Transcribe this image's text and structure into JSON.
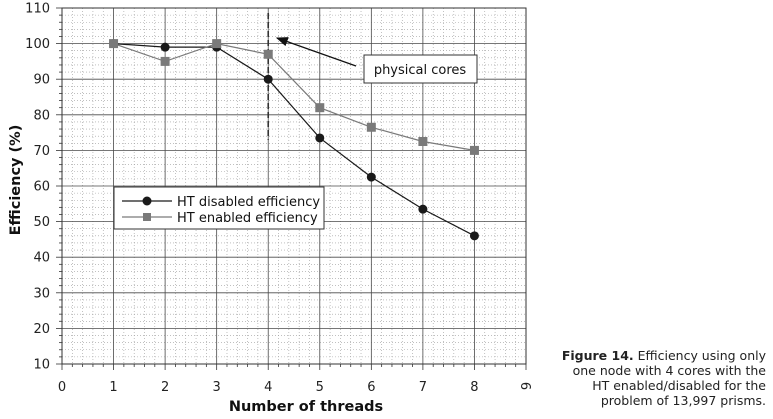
{
  "chart_data": {
    "type": "line",
    "title": "",
    "xlabel": "Number of threads",
    "ylabel": "Efficiency (%)",
    "xlim": [
      0,
      9
    ],
    "ylim": [
      10,
      110
    ],
    "x_ticks": [
      "0",
      "1",
      "2",
      "3",
      "4",
      "5",
      "6",
      "7",
      "8",
      "9"
    ],
    "y_ticks": [
      "10",
      "20",
      "30",
      "40",
      "50",
      "60",
      "70",
      "80",
      "90",
      "100",
      "110"
    ],
    "x": [
      1,
      2,
      3,
      4,
      5,
      6,
      7,
      8
    ],
    "series": [
      {
        "name": "HT disabled efficiency",
        "marker": "circle",
        "color": "#1a1a1a",
        "values": [
          100,
          99,
          99,
          90,
          73.5,
          62.5,
          53.5,
          46
        ]
      },
      {
        "name": "HT enabled efficiency",
        "marker": "square",
        "color": "#7a7a7a",
        "values": [
          100,
          95,
          100,
          97,
          82,
          76.5,
          72.5,
          70
        ]
      }
    ],
    "legend_position": "center-left",
    "vertical_marker": {
      "x": 4,
      "style": "dashed"
    },
    "annotation": {
      "text": "physical cores",
      "points_to_x": 4,
      "points_to_y": 102
    }
  },
  "caption": {
    "label": "Figure 14.",
    "text": "Efficiency using only one node with 4 cores with the HT enabled/disabled for the problem of 13,997 prisms."
  }
}
